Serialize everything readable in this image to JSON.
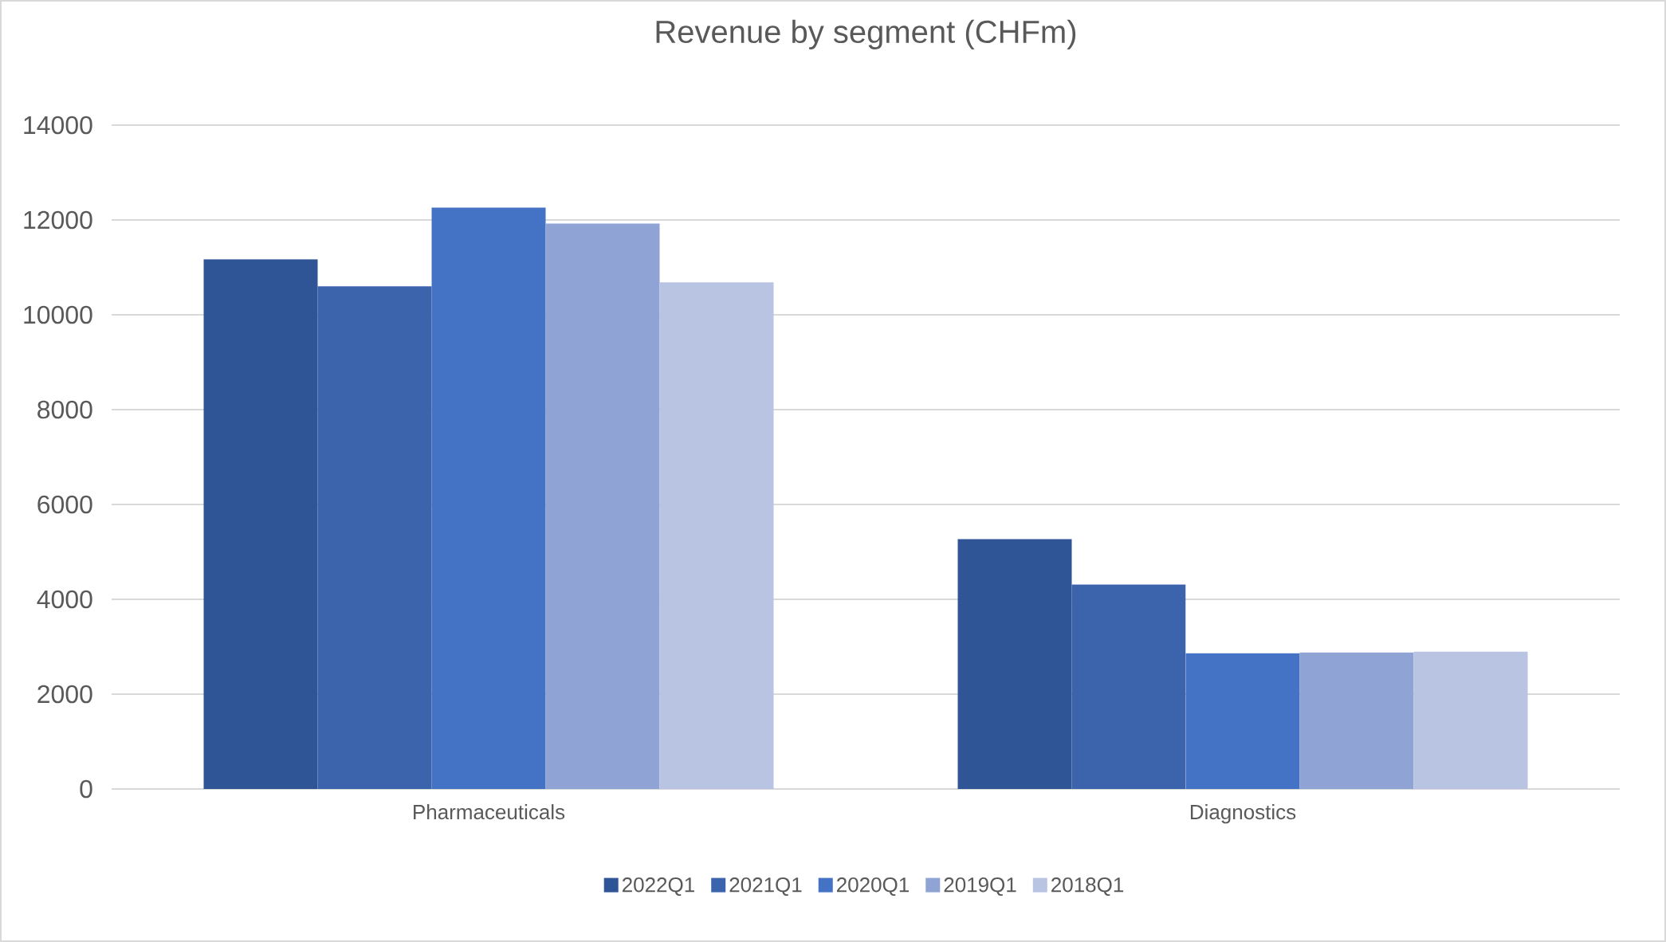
{
  "chart_data": {
    "type": "bar",
    "title": "Revenue by segment (CHFm)",
    "categories": [
      "Pharmaceuticals",
      "Diagnostics"
    ],
    "series": [
      {
        "name": "2022Q1",
        "color": "#2f5597",
        "values": [
          11170,
          5270
        ]
      },
      {
        "name": "2021Q1",
        "color": "#3b64ad",
        "values": [
          10600,
          4310
        ]
      },
      {
        "name": "2020Q1",
        "color": "#4472c4",
        "values": [
          12260,
          2860
        ]
      },
      {
        "name": "2019Q1",
        "color": "#8fa4d4",
        "values": [
          11925,
          2880
        ]
      },
      {
        "name": "2018Q1",
        "color": "#b9c4e3",
        "values": [
          10685,
          2895
        ]
      }
    ],
    "ylim": [
      0,
      14000
    ],
    "yticks": [
      0,
      2000,
      4000,
      6000,
      8000,
      10000,
      12000,
      14000
    ],
    "grid": "y",
    "legend": "bottom"
  }
}
